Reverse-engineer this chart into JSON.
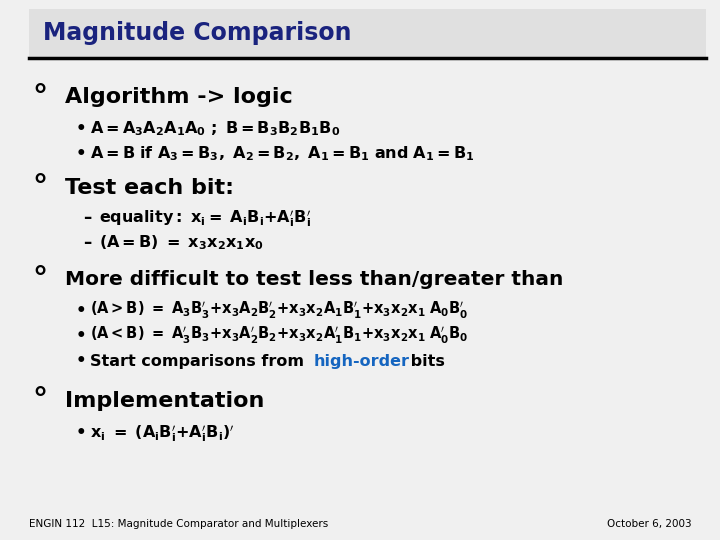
{
  "title": "Magnitude Comparison",
  "title_color": "#1a237e",
  "bg_color": "#f0f0f0",
  "footer_left": "ENGIN 112  L15: Magnitude Comparator and Multiplexers",
  "footer_right": "October 6, 2003"
}
